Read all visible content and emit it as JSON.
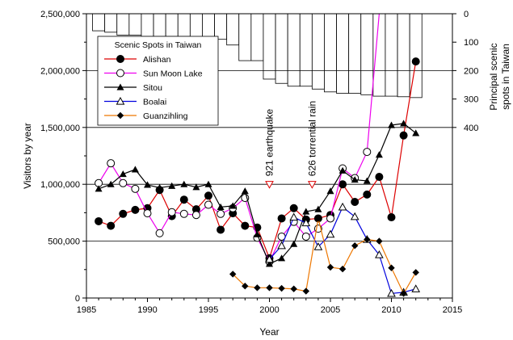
{
  "chart_data": {
    "type": "line",
    "xlabel": "Year",
    "ylabel": "Visitors by year",
    "y2label_lines": [
      "Principal scenic",
      "spots in Taiwan"
    ],
    "xlim": [
      1985,
      2015
    ],
    "ylim": [
      0,
      2500000
    ],
    "y2lim": [
      0,
      400
    ],
    "y2_inverted": true,
    "x_ticks": [
      1985,
      1990,
      1995,
      2000,
      2005,
      2010,
      2015
    ],
    "x_tick_labels": [
      "1985",
      "1990",
      "1995",
      "2000",
      "2005",
      "2010",
      "2015"
    ],
    "y_ticks": [
      0,
      500000,
      1000000,
      1500000,
      2000000,
      2500000
    ],
    "y_tick_labels": [
      "0",
      "500,000",
      "1,000,000",
      "1,500,000",
      "2,000,000",
      "2,500,000"
    ],
    "y2_ticks": [
      0,
      100,
      200,
      300,
      400
    ],
    "y2_tick_labels": [
      "0",
      "100",
      "200",
      "300",
      "400"
    ],
    "horizontal_gridlines": [
      500000,
      1000000,
      1500000,
      2000000
    ],
    "legend_title": "Scenic Spots in Taiwan",
    "legend_position": "top-left",
    "bars": {
      "x": [
        1986,
        1987,
        1988,
        1989,
        1990,
        1991,
        1992,
        1993,
        1994,
        1995,
        1996,
        1997,
        1998,
        1999,
        2000,
        2001,
        2002,
        2003,
        2004,
        2005,
        2006,
        2007,
        2008,
        2009,
        2010,
        2011,
        2012
      ],
      "values": [
        60,
        65,
        75,
        75,
        80,
        80,
        80,
        80,
        85,
        85,
        90,
        110,
        165,
        165,
        230,
        245,
        255,
        255,
        265,
        275,
        280,
        280,
        285,
        290,
        290,
        292,
        295
      ]
    },
    "series": [
      {
        "name": "Alishan",
        "color": "#dd0000",
        "marker": "circle-filled",
        "x": [
          1986,
          1987,
          1988,
          1989,
          1990,
          1991,
          1992,
          1993,
          1994,
          1995,
          1996,
          1997,
          1998,
          1999,
          2000,
          2001,
          2002,
          2003,
          2004,
          2005,
          2006,
          2007,
          2008,
          2009,
          2010,
          2011,
          2012
        ],
        "values": [
          675000,
          635000,
          740000,
          775000,
          790000,
          950000,
          720000,
          865000,
          780000,
          900000,
          600000,
          745000,
          635000,
          620000,
          350000,
          700000,
          790000,
          690000,
          700000,
          730000,
          1000000,
          845000,
          910000,
          1065000,
          710000,
          1430000,
          2080000
        ]
      },
      {
        "name": "Sun Moon Lake",
        "color": "#ee00ee",
        "marker": "circle-open",
        "x": [
          1986,
          1987,
          1988,
          1989,
          1990,
          1991,
          1992,
          1993,
          1994,
          1995,
          1996,
          1997,
          1998,
          1999,
          2000,
          2001,
          2002,
          2003,
          2004,
          2005,
          2006,
          2007,
          2008,
          2009
        ],
        "values": [
          1010000,
          1185000,
          1010000,
          960000,
          745000,
          570000,
          755000,
          740000,
          730000,
          820000,
          740000,
          790000,
          880000,
          530000,
          320000,
          540000,
          670000,
          540000,
          610000,
          700000,
          1140000,
          1055000,
          1285000,
          2500000
        ]
      },
      {
        "name": "Sitou",
        "color": "#000000",
        "marker": "triangle-filled",
        "x": [
          1986,
          1987,
          1988,
          1989,
          1990,
          1991,
          1992,
          1993,
          1994,
          1995,
          1996,
          1997,
          1998,
          1999,
          2000,
          2001,
          2002,
          2003,
          2004,
          2005,
          2006,
          2007,
          2008,
          2009,
          2010,
          2011,
          2012
        ],
        "values": [
          960000,
          1000000,
          1090000,
          1130000,
          995000,
          970000,
          985000,
          1000000,
          975000,
          1000000,
          800000,
          810000,
          940000,
          560000,
          300000,
          350000,
          475000,
          760000,
          780000,
          940000,
          1120000,
          1040000,
          1030000,
          1260000,
          1520000,
          1535000,
          1450000
        ]
      },
      {
        "name": "Boalai",
        "color": "#0000dd",
        "marker": "triangle-open",
        "x": [
          2000,
          2001,
          2002,
          2003,
          2004,
          2005,
          2006,
          2007,
          2008,
          2009,
          2010,
          2011,
          2012
        ],
        "values": [
          340000,
          460000,
          710000,
          660000,
          450000,
          560000,
          800000,
          715000,
          515000,
          380000,
          40000,
          50000,
          80000
        ]
      },
      {
        "name": "Guanzihling",
        "color": "#ee7700",
        "marker": "diamond-filled",
        "x": [
          1997,
          1998,
          1999,
          2000,
          2001,
          2002,
          2003,
          2004,
          2005,
          2006,
          2007,
          2008,
          2009,
          2010,
          2011,
          2012
        ],
        "values": [
          210000,
          105000,
          90000,
          90000,
          85000,
          80000,
          60000,
          700000,
          270000,
          255000,
          460000,
          515000,
          500000,
          265000,
          40000,
          225000
        ]
      }
    ],
    "annotations": [
      {
        "text": "921 earthquake",
        "x": 2000,
        "y": 1000000,
        "marker": "triangle-down-open",
        "color": "#dd0000"
      },
      {
        "text": "626 torrential rain",
        "x": 2003.5,
        "y": 1000000,
        "marker": "triangle-down-open",
        "color": "#dd0000"
      }
    ]
  }
}
